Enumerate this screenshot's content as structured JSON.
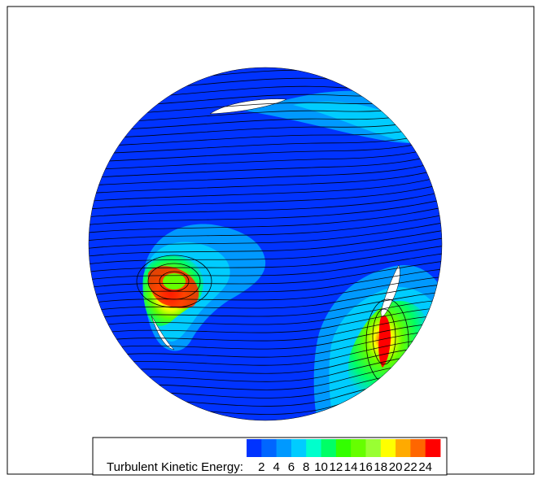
{
  "chart_data": {
    "type": "heatmap",
    "title": "",
    "colorbar": {
      "label": "Turbulent Kinetic Energy:",
      "ticks": [
        "2",
        "4",
        "6",
        "8",
        "10",
        "12",
        "14",
        "16",
        "18",
        "20",
        "22",
        "24"
      ],
      "range": [
        0,
        24
      ],
      "colors": [
        "#0033ff",
        "#0066ff",
        "#0099ff",
        "#00ccff",
        "#00ffcc",
        "#00ff66",
        "#33ff00",
        "#66ff00",
        "#99ff33",
        "#ffff00",
        "#ffaa00",
        "#ff6600",
        "#ff0000"
      ]
    },
    "background_level": 1,
    "hotspots": [
      {
        "name": "left-vortex-core",
        "peak": 24
      },
      {
        "name": "right-blade-wake",
        "peak": 24
      },
      {
        "name": "upper-right-wake",
        "peak": 6
      }
    ],
    "streamlines": true
  }
}
